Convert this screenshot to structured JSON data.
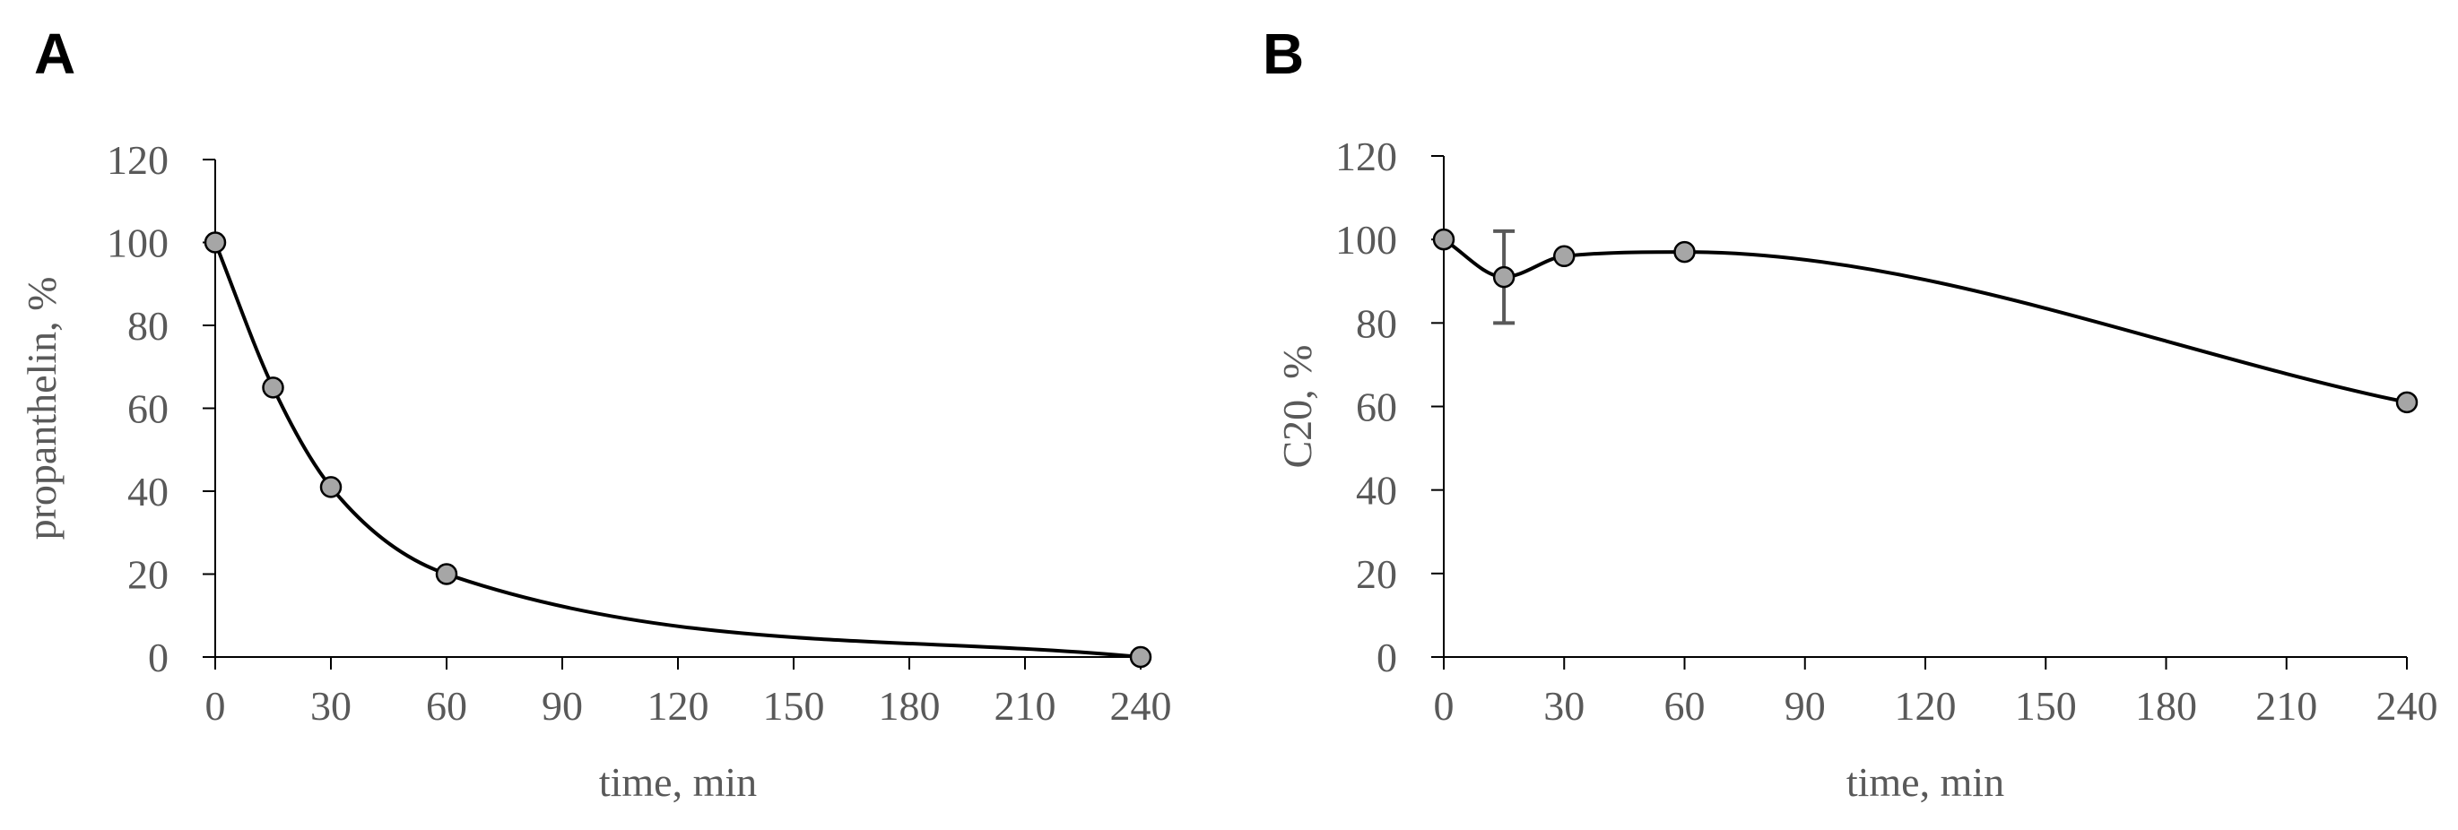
{
  "chart_data": [
    {
      "type": "line",
      "panel": "A",
      "title": "",
      "xlabel": "time, min",
      "ylabel": "propanthelin, %",
      "xlim": [
        0,
        240
      ],
      "ylim": [
        0,
        120
      ],
      "xticks": [
        0,
        30,
        60,
        90,
        120,
        150,
        180,
        210,
        240
      ],
      "yticks": [
        0,
        20,
        40,
        60,
        80,
        100,
        120
      ],
      "smooth": true,
      "grid": false,
      "series": [
        {
          "x": [
            0,
            15,
            30,
            60,
            240
          ],
          "y": [
            100,
            65,
            41,
            20,
            0
          ],
          "marker_color": "#a6a6a6",
          "line_color": "#000000"
        }
      ]
    },
    {
      "type": "line",
      "panel": "B",
      "title": "",
      "xlabel": "time, min",
      "ylabel": "C20, %",
      "xlim": [
        0,
        240
      ],
      "ylim": [
        0,
        120
      ],
      "xticks": [
        0,
        30,
        60,
        90,
        120,
        150,
        180,
        210,
        240
      ],
      "yticks": [
        0,
        20,
        40,
        60,
        80,
        100,
        120
      ],
      "smooth": true,
      "grid": false,
      "series": [
        {
          "x": [
            0,
            15,
            30,
            60,
            240
          ],
          "y": [
            100,
            91,
            96,
            97,
            61
          ],
          "yerr": [
            0,
            11,
            0,
            0,
            0
          ],
          "marker_color": "#a6a6a6",
          "line_color": "#000000",
          "error_color": "#595959"
        }
      ]
    }
  ]
}
